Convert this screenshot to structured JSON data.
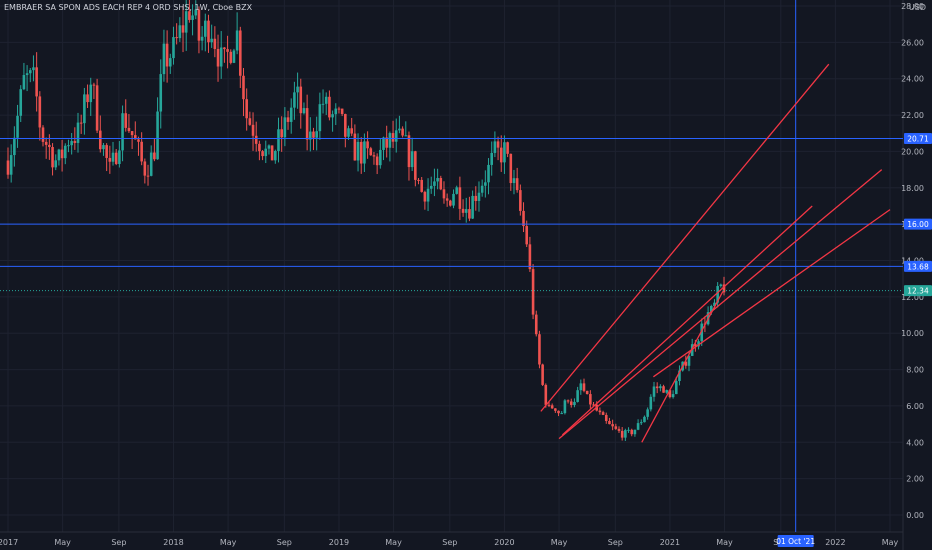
{
  "header": {
    "title": "EMBRAER SA SPON ADS EACH REP 4 ORD SHS, 1W, Cboe BZX",
    "currency": "USD"
  },
  "colors": {
    "background": "#131722",
    "up": "#26a69a",
    "down": "#ef5350",
    "hline": "#2962ff",
    "trend": "#f23645",
    "axis_text": "#b2b5be",
    "label_bg": "#2962ff",
    "label_text": "#ffffff"
  },
  "chart_data": {
    "type": "candlestick",
    "title": "EMBRAER SA SPON ADS EACH REP 4 ORD SHS, 1W, Cboe BZX",
    "xlabel": "",
    "ylabel": "USD",
    "ylim": [
      -0.6,
      28.6
    ],
    "y_ticks": [
      "0.00",
      "2.00",
      "4.00",
      "6.00",
      "8.00",
      "10.00",
      "12.00",
      "14.00",
      "16.00",
      "18.00",
      "20.00",
      "22.00",
      "24.00",
      "26.00",
      "28.00"
    ],
    "x_ticks": [
      {
        "label": "2017",
        "t": 2017.0
      },
      {
        "label": "May",
        "t": 2017.33
      },
      {
        "label": "Sep",
        "t": 2017.67
      },
      {
        "label": "2018",
        "t": 2018.0
      },
      {
        "label": "May",
        "t": 2018.33
      },
      {
        "label": "Sep",
        "t": 2018.67
      },
      {
        "label": "2019",
        "t": 2019.0
      },
      {
        "label": "May",
        "t": 2019.33
      },
      {
        "label": "Sep",
        "t": 2019.67
      },
      {
        "label": "2020",
        "t": 2020.0
      },
      {
        "label": "May",
        "t": 2020.33
      },
      {
        "label": "Sep",
        "t": 2020.67
      },
      {
        "label": "2021",
        "t": 2021.0
      },
      {
        "label": "May",
        "t": 2021.33
      },
      {
        "label": "Sep",
        "t": 2021.67
      },
      {
        "label": "2022",
        "t": 2022.0
      },
      {
        "label": "May",
        "t": 2022.33
      }
    ],
    "x_range": [
      2017.0,
      2022.33
    ],
    "price_path": [
      [
        2017.0,
        19.5
      ],
      [
        2017.05,
        21.5
      ],
      [
        2017.1,
        24.0
      ],
      [
        2017.16,
        23.8
      ],
      [
        2017.2,
        21.0
      ],
      [
        2017.3,
        19.3
      ],
      [
        2017.37,
        20.8
      ],
      [
        2017.43,
        21.0
      ],
      [
        2017.5,
        24.0
      ],
      [
        2017.56,
        20.7
      ],
      [
        2017.62,
        18.7
      ],
      [
        2017.7,
        22.0
      ],
      [
        2017.76,
        20.7
      ],
      [
        2017.82,
        19.0
      ],
      [
        2017.88,
        19.8
      ],
      [
        2017.94,
        25.0
      ],
      [
        2018.0,
        25.5
      ],
      [
        2018.1,
        28.0
      ],
      [
        2018.16,
        26.0
      ],
      [
        2018.22,
        27.2
      ],
      [
        2018.3,
        24.5
      ],
      [
        2018.38,
        26.8
      ],
      [
        2018.44,
        22.0
      ],
      [
        2018.5,
        21.0
      ],
      [
        2018.58,
        19.5
      ],
      [
        2018.66,
        21.0
      ],
      [
        2018.74,
        23.2
      ],
      [
        2018.82,
        20.5
      ],
      [
        2018.9,
        22.8
      ],
      [
        2018.94,
        22.0
      ],
      [
        2019.0,
        21.7
      ],
      [
        2019.08,
        20.2
      ],
      [
        2019.16,
        19.8
      ],
      [
        2019.22,
        19.5
      ],
      [
        2019.3,
        20.5
      ],
      [
        2019.38,
        20.6
      ],
      [
        2019.44,
        19.5
      ],
      [
        2019.5,
        17.8
      ],
      [
        2019.58,
        18.2
      ],
      [
        2019.64,
        17.0
      ],
      [
        2019.7,
        18.0
      ],
      [
        2019.78,
        16.8
      ],
      [
        2019.84,
        18.0
      ],
      [
        2019.9,
        18.9
      ],
      [
        2019.94,
        19.8
      ],
      [
        2020.0,
        20.0
      ],
      [
        2020.06,
        18.0
      ],
      [
        2020.1,
        16.5
      ],
      [
        2020.14,
        14.8
      ],
      [
        2020.18,
        10.5
      ],
      [
        2020.22,
        7.6
      ],
      [
        2020.26,
        5.8
      ],
      [
        2020.3,
        6.0
      ],
      [
        2020.34,
        5.5
      ],
      [
        2020.38,
        6.5
      ],
      [
        2020.42,
        6.0
      ],
      [
        2020.46,
        7.2
      ],
      [
        2020.5,
        6.4
      ],
      [
        2020.56,
        5.7
      ],
      [
        2020.62,
        5.0
      ],
      [
        2020.68,
        4.6
      ],
      [
        2020.74,
        4.4
      ],
      [
        2020.8,
        4.8
      ],
      [
        2020.86,
        5.7
      ],
      [
        2020.9,
        7.0
      ],
      [
        2020.96,
        7.0
      ],
      [
        2021.0,
        6.4
      ],
      [
        2021.06,
        7.8
      ],
      [
        2021.12,
        9.0
      ],
      [
        2021.18,
        10.0
      ],
      [
        2021.22,
        11.0
      ],
      [
        2021.26,
        11.2
      ],
      [
        2021.3,
        12.5
      ],
      [
        2021.34,
        12.6
      ]
    ],
    "horizontal_levels": [
      {
        "value": 20.71,
        "label": "20.71"
      },
      {
        "value": 16.0,
        "label": "16.00"
      },
      {
        "value": 13.68,
        "label": "13.68"
      }
    ],
    "last_price": {
      "value": 12.34,
      "label": "12.34"
    },
    "crosshair": {
      "t": 2021.76,
      "label": "01 Oct '21"
    },
    "trendlines": [
      {
        "t1": 2020.22,
        "p1": 5.7,
        "t2": 2021.96,
        "p2": 24.8
      },
      {
        "t1": 2020.33,
        "p1": 4.2,
        "t2": 2022.28,
        "p2": 19.0
      },
      {
        "t1": 2020.35,
        "p1": 4.4,
        "t2": 2021.86,
        "p2": 17.0
      },
      {
        "t1": 2020.83,
        "p1": 4.0,
        "t2": 2021.32,
        "p2": 12.3
      },
      {
        "t1": 2020.9,
        "p1": 7.6,
        "t2": 2022.33,
        "p2": 16.8
      }
    ]
  }
}
